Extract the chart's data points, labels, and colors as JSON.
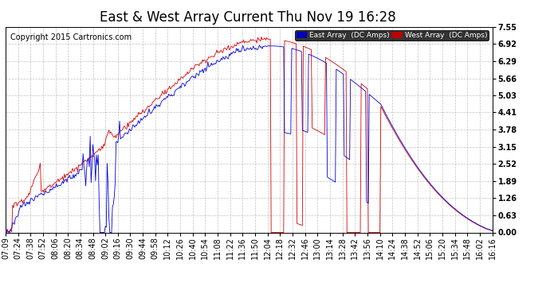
{
  "title": "East & West Array Current Thu Nov 19 16:28",
  "copyright": "Copyright 2015 Cartronics.com",
  "legend_east": "East Array  (DC Amps)",
  "legend_west": "West Array  (DC Amps)",
  "ylabel_values": [
    0.0,
    0.63,
    1.26,
    1.89,
    2.52,
    3.15,
    3.78,
    4.41,
    5.03,
    5.66,
    6.29,
    6.92,
    7.55
  ],
  "xtick_labels": [
    "07:09",
    "07:24",
    "07:38",
    "07:52",
    "08:06",
    "08:20",
    "08:34",
    "08:48",
    "09:02",
    "09:16",
    "09:30",
    "09:44",
    "09:58",
    "10:12",
    "10:26",
    "10:40",
    "10:54",
    "11:08",
    "11:22",
    "11:36",
    "11:50",
    "12:04",
    "12:18",
    "12:32",
    "12:46",
    "13:00",
    "13:14",
    "13:28",
    "13:42",
    "13:56",
    "14:10",
    "14:24",
    "14:38",
    "14:52",
    "15:06",
    "15:20",
    "15:34",
    "15:48",
    "16:02",
    "16:16"
  ],
  "ylim": [
    0.0,
    7.55
  ],
  "east_color": "#0000dd",
  "west_color": "#dd0000",
  "bg_color": "#ffffff",
  "grid_color": "#bbbbbb",
  "title_fontsize": 12,
  "copyright_fontsize": 7,
  "tick_fontsize": 7,
  "legend_bg_east": "#0000bb",
  "legend_bg_west": "#bb0000",
  "legend_text_color": "#ffffff"
}
